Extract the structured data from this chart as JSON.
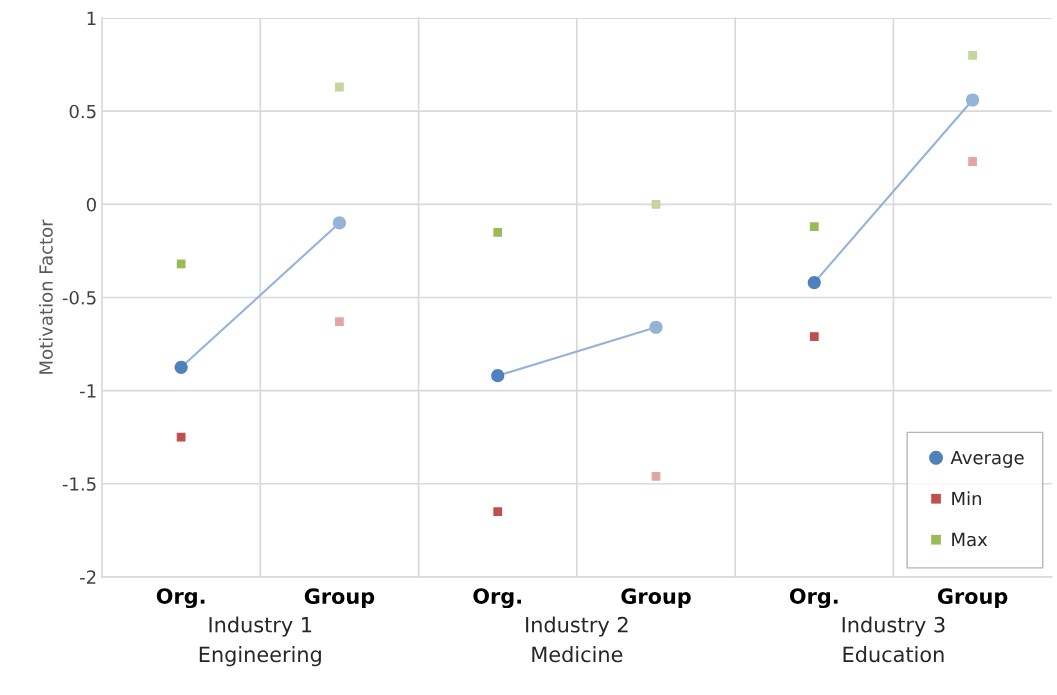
{
  "chart_data": [
    {
      "type": "line",
      "categories": [
        "Org.",
        "Group"
      ],
      "xlabel": "Industry 1\nEngineering",
      "ylabel": "Motivation Factor",
      "ylim": [
        -2,
        1
      ],
      "yticks": [
        -2,
        -1.5,
        -1,
        -0.5,
        0,
        0.5,
        1
      ],
      "grid": true,
      "series": [
        {
          "color": "#95b3d7",
          "colors": [
            "#4f81bd",
            "#95b3d7"
          ],
          "marker": "circle",
          "values": [
            -0.875,
            -0.1
          ]
        },
        {
          "type": "scatter",
          "color": "#c0504d",
          "colors": [
            "#c0504d",
            "#e6a5a4"
          ],
          "marker": "square",
          "values": [
            -1.25,
            -0.63
          ]
        },
        {
          "type": "scatter",
          "color": "#9bbb59",
          "colors": [
            "#9bbb59",
            "#c3d69b"
          ],
          "marker": "square",
          "values": [
            -0.32,
            0.63
          ]
        }
      ]
    },
    {
      "type": "line",
      "categories": [
        "Org.",
        "Group"
      ],
      "xlabel": "Industry 2\nMedicine",
      "ylim": [
        -2,
        1
      ],
      "yticks": [
        -2,
        -1.5,
        -1,
        -0.5,
        0,
        0.5,
        1
      ],
      "grid": true,
      "tick_labels": "x",
      "series": [
        {
          "color": "#95b3d7",
          "colors": [
            "#4f81bd",
            "#95b3d7"
          ],
          "marker": "circle",
          "values": [
            -0.92,
            -0.66
          ]
        },
        {
          "type": "scatter",
          "color": "#c0504d",
          "colors": [
            "#c0504d",
            "#e6a5a4"
          ],
          "marker": "square",
          "values": [
            -1.65,
            -1.46
          ]
        },
        {
          "type": "scatter",
          "color": "#9bbb59",
          "colors": [
            "#9bbb59",
            "#c3d69b"
          ],
          "marker": "square",
          "values": [
            -0.15,
            0.0
          ]
        }
      ]
    },
    {
      "type": "line",
      "categories": [
        "Org.",
        "Group"
      ],
      "xlabel": "Industry 3\nEducation",
      "ylim": [
        -2,
        1
      ],
      "yticks": [
        -2,
        -1.5,
        -1,
        -0.5,
        0,
        0.5,
        1
      ],
      "grid": true,
      "tick_labels": "x",
      "legend": "bottom right",
      "series": [
        {
          "name": "Average",
          "color": "#95b3d7",
          "colors": [
            "#4f81bd",
            "#95b3d7"
          ],
          "marker": "circle",
          "values": [
            -0.42,
            0.56
          ]
        },
        {
          "type": "scatter",
          "name": "Min",
          "color": "#c0504d",
          "colors": [
            "#c0504d",
            "#e6a5a4"
          ],
          "marker": "square",
          "values": [
            -0.71,
            0.23
          ]
        },
        {
          "type": "scatter",
          "name": "Max",
          "color": "#9bbb59",
          "colors": [
            "#9bbb59",
            "#c3d69b"
          ],
          "marker": "square",
          "values": [
            -0.12,
            0.8
          ]
        }
      ]
    }
  ]
}
